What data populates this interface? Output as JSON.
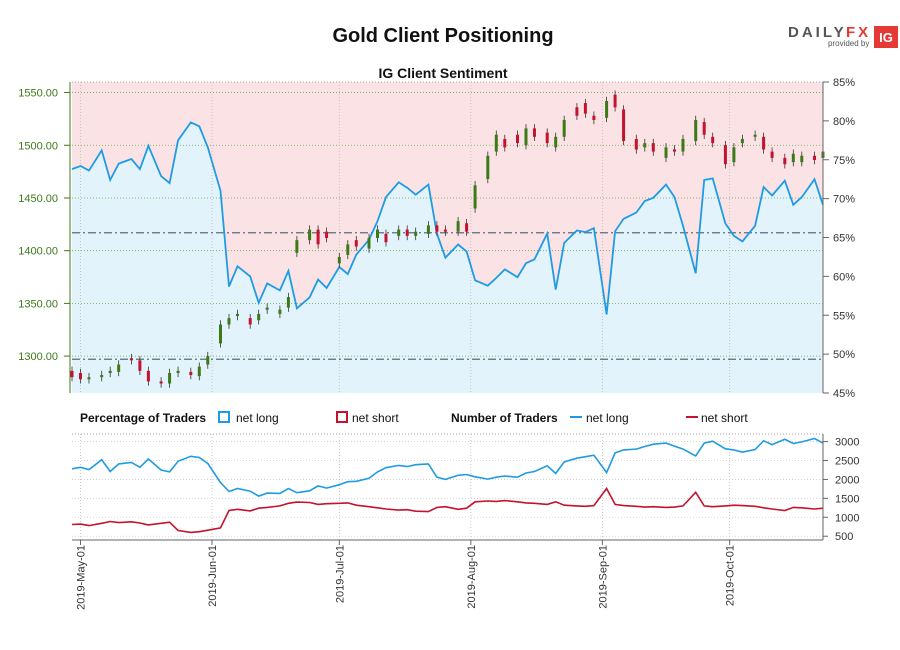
{
  "header": {
    "title": "Gold Client Positioning",
    "subtitle": "IG Client Sentiment",
    "brand_main": "DAILY",
    "brand_accent": "FX",
    "brand_provided": "provided by",
    "brand_logo": "IG"
  },
  "legend": {
    "percentage_title": "Percentage of Traders",
    "number_title": "Number of Traders",
    "net_long": "net long",
    "net_short": "net short"
  },
  "colors": {
    "long_line": "#1f9be3",
    "long_fill": "#e3f3fb",
    "short_line": "#c4122f",
    "short_fill": "#fbe3e5",
    "candle_up": "#3c7a18",
    "candle_down": "#c4122f",
    "price_axis": "#3c7a18",
    "brand_red": "#e53935"
  },
  "chart_data": [
    {
      "type": "candlestick+area",
      "title": "IG Client Sentiment",
      "left_axis": {
        "label": "",
        "ylim": [
          1265,
          1560
        ],
        "ticks": [
          1300,
          1350,
          1400,
          1450,
          1500,
          1550
        ],
        "tick_labels": [
          "1300.00",
          "1350.00",
          "1400.00",
          "1450.00",
          "1500.00",
          "1550.00"
        ]
      },
      "right_axis": {
        "label": "",
        "ylim": [
          45,
          85
        ],
        "ticks": [
          45,
          50,
          55,
          60,
          65,
          70,
          75,
          80,
          85
        ],
        "tick_labels": [
          "45%",
          "50%",
          "55%",
          "60%",
          "65%",
          "70%",
          "75%",
          "80%",
          "85%"
        ]
      },
      "reference_levels": [
        {
          "axis": "left",
          "value": 1297
        },
        {
          "axis": "left",
          "value": 1417
        }
      ],
      "x_axis": {
        "start": "2019-04-29",
        "end": "2019-10-23",
        "tick_labels": [
          "2019-May-01",
          "2019-Jun-01",
          "2019-Jul-01",
          "2019-Aug-01",
          "2019-Sep-01",
          "2019-Oct-01"
        ],
        "tick_dates": [
          "2019-05-01",
          "2019-06-01",
          "2019-07-01",
          "2019-08-01",
          "2019-09-01",
          "2019-10-01"
        ]
      },
      "series": [
        {
          "name": "net long",
          "axis": "right",
          "dates": [
            "2019-04-29",
            "2019-05-01",
            "2019-05-03",
            "2019-05-06",
            "2019-05-08",
            "2019-05-10",
            "2019-05-13",
            "2019-05-15",
            "2019-05-17",
            "2019-05-20",
            "2019-05-22",
            "2019-05-24",
            "2019-05-27",
            "2019-05-29",
            "2019-05-31",
            "2019-06-03",
            "2019-06-05",
            "2019-06-07",
            "2019-06-10",
            "2019-06-12",
            "2019-06-14",
            "2019-06-17",
            "2019-06-19",
            "2019-06-21",
            "2019-06-24",
            "2019-06-26",
            "2019-06-28",
            "2019-07-01",
            "2019-07-03",
            "2019-07-05",
            "2019-07-08",
            "2019-07-10",
            "2019-07-12",
            "2019-07-15",
            "2019-07-17",
            "2019-07-19",
            "2019-07-22",
            "2019-07-24",
            "2019-07-26",
            "2019-07-29",
            "2019-07-31",
            "2019-08-02",
            "2019-08-05",
            "2019-08-07",
            "2019-08-09",
            "2019-08-12",
            "2019-08-14",
            "2019-08-16",
            "2019-08-19",
            "2019-08-21",
            "2019-08-23",
            "2019-08-26",
            "2019-08-28",
            "2019-08-30",
            "2019-09-02",
            "2019-09-04",
            "2019-09-06",
            "2019-09-09",
            "2019-09-11",
            "2019-09-13",
            "2019-09-16",
            "2019-09-18",
            "2019-09-20",
            "2019-09-23",
            "2019-09-25",
            "2019-09-27",
            "2019-09-30",
            "2019-10-02",
            "2019-10-04",
            "2019-10-07",
            "2019-10-09",
            "2019-10-11",
            "2019-10-14",
            "2019-10-16",
            "2019-10-18",
            "2019-10-21",
            "2019-10-23"
          ],
          "values": [
            73.8,
            74.2,
            73.6,
            76.2,
            72.4,
            74.5,
            75.1,
            73.8,
            76.8,
            72.9,
            72.0,
            77.5,
            79.8,
            79.3,
            76.6,
            71.0,
            58.7,
            61.3,
            60.0,
            56.6,
            59.1,
            58.2,
            60.7,
            55.9,
            57.3,
            59.6,
            58.5,
            61.2,
            60.3,
            62.8,
            64.7,
            67.1,
            70.2,
            72.1,
            71.4,
            70.5,
            71.8,
            65.5,
            62.4,
            64.1,
            63.2,
            59.5,
            58.8,
            59.8,
            60.9,
            59.9,
            61.7,
            62.2,
            65.5,
            58.3,
            64.3,
            65.9,
            65.7,
            66.2,
            55.1,
            65.8,
            67.4,
            68.2,
            69.7,
            70.1,
            71.8,
            70.2,
            66.5,
            60.4,
            72.4,
            72.6,
            66.8,
            65.2,
            64.5,
            66.5,
            71.5,
            70.4,
            72.3,
            69.2,
            70.2,
            72.5,
            69.2
          ]
        },
        {
          "name": "net short",
          "axis": "right",
          "dates": [
            "2019-04-29",
            "2019-05-01",
            "2019-05-03",
            "2019-05-06",
            "2019-05-08",
            "2019-05-10",
            "2019-05-13",
            "2019-05-15",
            "2019-05-17",
            "2019-05-20",
            "2019-05-22",
            "2019-05-24",
            "2019-05-27",
            "2019-05-29",
            "2019-05-31",
            "2019-06-03",
            "2019-06-05",
            "2019-06-07",
            "2019-06-10",
            "2019-06-12",
            "2019-06-14",
            "2019-06-17",
            "2019-06-19",
            "2019-06-21",
            "2019-06-24",
            "2019-06-26",
            "2019-06-28",
            "2019-07-01",
            "2019-07-03",
            "2019-07-05",
            "2019-07-08",
            "2019-07-10",
            "2019-07-12",
            "2019-07-15",
            "2019-07-17",
            "2019-07-19",
            "2019-07-22",
            "2019-07-24",
            "2019-07-26",
            "2019-07-29",
            "2019-07-31",
            "2019-08-02",
            "2019-08-05",
            "2019-08-07",
            "2019-08-09",
            "2019-08-12",
            "2019-08-14",
            "2019-08-16",
            "2019-08-19",
            "2019-08-21",
            "2019-08-23",
            "2019-08-26",
            "2019-08-28",
            "2019-08-30",
            "2019-09-02",
            "2019-09-04",
            "2019-09-06",
            "2019-09-09",
            "2019-09-11",
            "2019-09-13",
            "2019-09-16",
            "2019-09-18",
            "2019-09-20",
            "2019-09-23",
            "2019-09-25",
            "2019-09-27",
            "2019-09-30",
            "2019-10-02",
            "2019-10-04",
            "2019-10-07",
            "2019-10-09",
            "2019-10-11",
            "2019-10-14",
            "2019-10-16",
            "2019-10-18",
            "2019-10-21",
            "2019-10-23"
          ],
          "values": [
            26.2,
            25.8,
            26.4,
            23.8,
            27.6,
            25.5,
            24.9,
            26.2,
            23.2,
            27.1,
            28.0,
            22.5,
            20.2,
            20.7,
            23.4,
            29.0,
            41.3,
            38.7,
            40.0,
            43.4,
            40.9,
            41.8,
            39.3,
            44.1,
            42.7,
            40.4,
            41.5,
            38.8,
            39.7,
            37.2,
            35.3,
            32.9,
            29.8,
            27.9,
            28.6,
            29.5,
            28.2,
            34.5,
            37.6,
            35.9,
            36.8,
            40.5,
            41.2,
            40.2,
            39.1,
            40.1,
            38.3,
            37.8,
            34.5,
            41.7,
            35.7,
            34.1,
            34.3,
            33.8,
            44.9,
            34.2,
            32.6,
            31.8,
            30.3,
            29.9,
            28.2,
            29.8,
            33.5,
            39.6,
            27.6,
            27.4,
            33.2,
            34.8,
            35.5,
            33.5,
            28.5,
            29.6,
            27.7,
            30.8,
            29.8,
            27.5,
            30.8
          ]
        },
        {
          "name": "price",
          "type": "candlestick",
          "axis": "left",
          "dates": [
            "2019-04-29",
            "2019-05-01",
            "2019-05-03",
            "2019-05-06",
            "2019-05-08",
            "2019-05-10",
            "2019-05-13",
            "2019-05-15",
            "2019-05-17",
            "2019-05-20",
            "2019-05-22",
            "2019-05-24",
            "2019-05-27",
            "2019-05-29",
            "2019-05-31",
            "2019-06-03",
            "2019-06-05",
            "2019-06-07",
            "2019-06-10",
            "2019-06-12",
            "2019-06-14",
            "2019-06-17",
            "2019-06-19",
            "2019-06-21",
            "2019-06-24",
            "2019-06-26",
            "2019-06-28",
            "2019-07-01",
            "2019-07-03",
            "2019-07-05",
            "2019-07-08",
            "2019-07-10",
            "2019-07-12",
            "2019-07-15",
            "2019-07-17",
            "2019-07-19",
            "2019-07-22",
            "2019-07-24",
            "2019-07-26",
            "2019-07-29",
            "2019-07-31",
            "2019-08-02",
            "2019-08-05",
            "2019-08-07",
            "2019-08-09",
            "2019-08-12",
            "2019-08-14",
            "2019-08-16",
            "2019-08-19",
            "2019-08-21",
            "2019-08-23",
            "2019-08-26",
            "2019-08-28",
            "2019-08-30",
            "2019-09-02",
            "2019-09-04",
            "2019-09-06",
            "2019-09-09",
            "2019-09-11",
            "2019-09-13",
            "2019-09-16",
            "2019-09-18",
            "2019-09-20",
            "2019-09-23",
            "2019-09-25",
            "2019-09-27",
            "2019-09-30",
            "2019-10-02",
            "2019-10-04",
            "2019-10-07",
            "2019-10-09",
            "2019-10-11",
            "2019-10-14",
            "2019-10-16",
            "2019-10-18",
            "2019-10-21",
            "2019-10-23"
          ],
          "open": [
            1286,
            1284,
            1278,
            1280,
            1284,
            1285,
            1298,
            1296,
            1286,
            1276,
            1274,
            1284,
            1285,
            1281,
            1292,
            1312,
            1330,
            1338,
            1336,
            1334,
            1344,
            1340,
            1346,
            1398,
            1410,
            1420,
            1418,
            1388,
            1396,
            1410,
            1402,
            1412,
            1416,
            1414,
            1420,
            1414,
            1416,
            1424,
            1420,
            1418,
            1426,
            1440,
            1468,
            1494,
            1506,
            1510,
            1500,
            1516,
            1512,
            1498,
            1508,
            1536,
            1540,
            1528,
            1526,
            1548,
            1534,
            1506,
            1498,
            1502,
            1488,
            1496,
            1494,
            1504,
            1522,
            1508,
            1500,
            1484,
            1502,
            1508,
            1508,
            1494,
            1488,
            1484,
            1484,
            1490,
            1488
          ],
          "close": [
            1280,
            1278,
            1280,
            1282,
            1286,
            1292,
            1296,
            1286,
            1276,
            1274,
            1284,
            1286,
            1282,
            1290,
            1300,
            1330,
            1336,
            1340,
            1330,
            1340,
            1346,
            1344,
            1356,
            1410,
            1420,
            1406,
            1412,
            1394,
            1406,
            1404,
            1412,
            1420,
            1408,
            1420,
            1414,
            1418,
            1424,
            1418,
            1418,
            1428,
            1418,
            1462,
            1490,
            1510,
            1498,
            1502,
            1516,
            1508,
            1502,
            1508,
            1524,
            1528,
            1530,
            1524,
            1542,
            1536,
            1504,
            1496,
            1502,
            1494,
            1498,
            1494,
            1506,
            1524,
            1510,
            1502,
            1482,
            1498,
            1506,
            1510,
            1496,
            1488,
            1482,
            1492,
            1490,
            1486,
            1494
          ]
        }
      ]
    },
    {
      "type": "line",
      "title": "Number of Traders",
      "y_axis": {
        "ylim": [
          400,
          3200
        ],
        "ticks": [
          500,
          1000,
          1500,
          2000,
          2500,
          3000
        ],
        "tick_labels": [
          "500",
          "1000",
          "1500",
          "2000",
          "2500",
          "3000"
        ]
      },
      "series": [
        {
          "name": "net long",
          "values": [
            2280,
            2320,
            2260,
            2520,
            2210,
            2410,
            2450,
            2320,
            2540,
            2250,
            2200,
            2480,
            2610,
            2580,
            2420,
            1920,
            1680,
            1760,
            1690,
            1560,
            1640,
            1630,
            1760,
            1650,
            1700,
            1830,
            1770,
            1860,
            1940,
            1950,
            2030,
            2200,
            2310,
            2370,
            2340,
            2390,
            2410,
            2060,
            2000,
            2110,
            2130,
            2070,
            2010,
            2060,
            2090,
            2060,
            2170,
            2210,
            2360,
            2160,
            2460,
            2560,
            2600,
            2640,
            2180,
            2700,
            2780,
            2800,
            2870,
            2930,
            2960,
            2880,
            2800,
            2620,
            2960,
            3010,
            2810,
            2780,
            2720,
            2790,
            3020,
            2920,
            3060,
            2950,
            2990,
            3080,
            2960
          ]
        },
        {
          "name": "net short",
          "values": [
            810,
            820,
            780,
            840,
            890,
            860,
            880,
            850,
            800,
            840,
            870,
            650,
            600,
            620,
            660,
            720,
            1180,
            1210,
            1170,
            1240,
            1260,
            1300,
            1370,
            1400,
            1390,
            1340,
            1360,
            1370,
            1380,
            1320,
            1280,
            1250,
            1220,
            1190,
            1200,
            1160,
            1150,
            1260,
            1280,
            1210,
            1240,
            1410,
            1430,
            1420,
            1440,
            1410,
            1380,
            1370,
            1340,
            1410,
            1320,
            1300,
            1290,
            1310,
            1760,
            1340,
            1310,
            1290,
            1270,
            1280,
            1260,
            1270,
            1300,
            1660,
            1300,
            1280,
            1300,
            1320,
            1310,
            1290,
            1250,
            1220,
            1180,
            1260,
            1250,
            1220,
            1240
          ]
        }
      ]
    }
  ]
}
